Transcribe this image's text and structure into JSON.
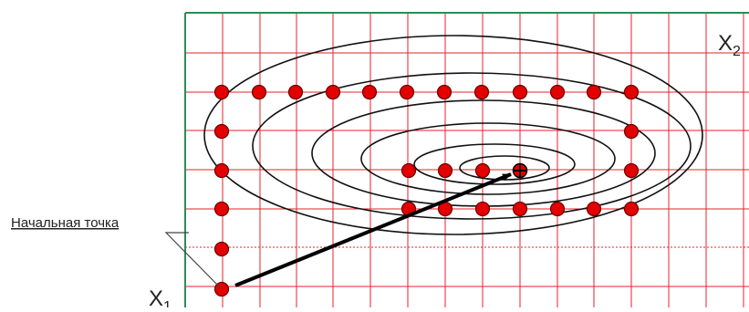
{
  "labels": {
    "start_point": "Начальная точка",
    "x1": "X",
    "x1_sub": "1",
    "x2": "X",
    "x2_sub": "2"
  },
  "colors": {
    "grid": "#e8212b",
    "axis": "#2e8b57",
    "contour": "#111111",
    "point_fill": "#e30000",
    "point_stroke": "#6a0000",
    "arrow": "#000000",
    "label_text": "#222222"
  },
  "search": {
    "description": "Search path points on a grid over contour lines",
    "start_marker": "start-point",
    "optimum_marker": "optimum-point"
  }
}
